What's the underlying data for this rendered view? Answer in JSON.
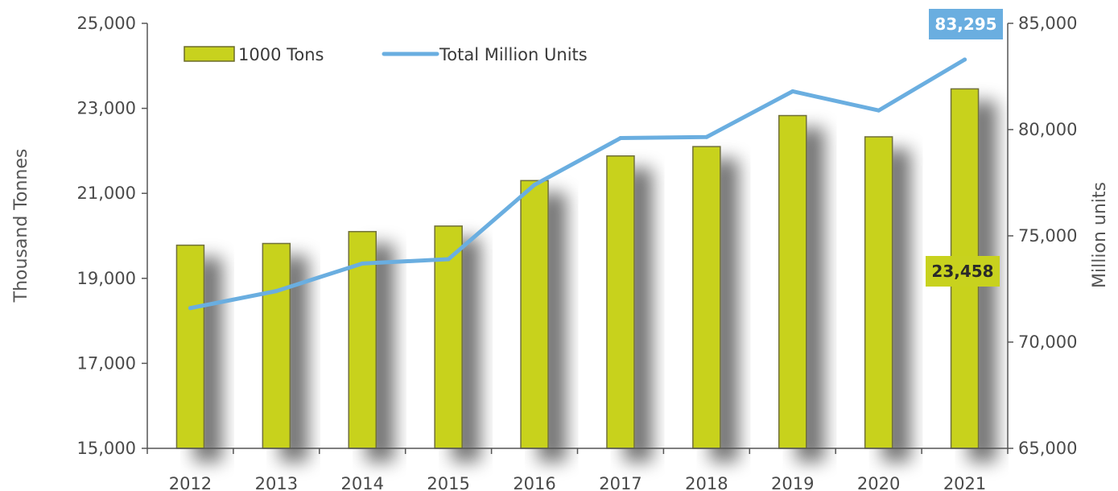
{
  "chart_data": {
    "type": "bar",
    "categories": [
      "2012",
      "2013",
      "2014",
      "2015",
      "2016",
      "2017",
      "2018",
      "2019",
      "2020",
      "2021"
    ],
    "series": [
      {
        "name": "1000 Tons",
        "type": "bar",
        "axis": "left",
        "color": "#c8d21e",
        "values": [
          19780,
          19820,
          20100,
          20230,
          21300,
          21880,
          22100,
          22830,
          22330,
          23458
        ]
      },
      {
        "name": "Total Million Units",
        "type": "line",
        "axis": "right",
        "color": "#6aaee0",
        "values": [
          71600,
          72400,
          73700,
          73900,
          77400,
          79600,
          79650,
          81800,
          80900,
          83295
        ]
      }
    ],
    "y_left": {
      "label": "Thousand Tonnes",
      "lim": [
        15000,
        25000
      ],
      "ticks": [
        15000,
        17000,
        19000,
        21000,
        23000,
        25000
      ],
      "tick_labels": [
        "15,000",
        "17,000",
        "19,000",
        "21,000",
        "23,000",
        "25,000"
      ]
    },
    "y_right": {
      "label": "Million units",
      "lim": [
        65000,
        85000
      ],
      "ticks": [
        65000,
        70000,
        75000,
        80000,
        85000
      ],
      "tick_labels": [
        "65,000",
        "70,000",
        "75,000",
        "80,000",
        "85,000"
      ]
    },
    "xlabel": "",
    "legend_placement": "top-left",
    "grid": false,
    "annotations": [
      {
        "text": "83,295",
        "series": "Total Million Units",
        "category": "2021",
        "color": "#6aaee0",
        "text_color": "#ffffff"
      },
      {
        "text": "23,458",
        "series": "1000 Tons",
        "category": "2021",
        "color": "#c8d21e",
        "text_color": "#2a2a2a"
      }
    ]
  }
}
